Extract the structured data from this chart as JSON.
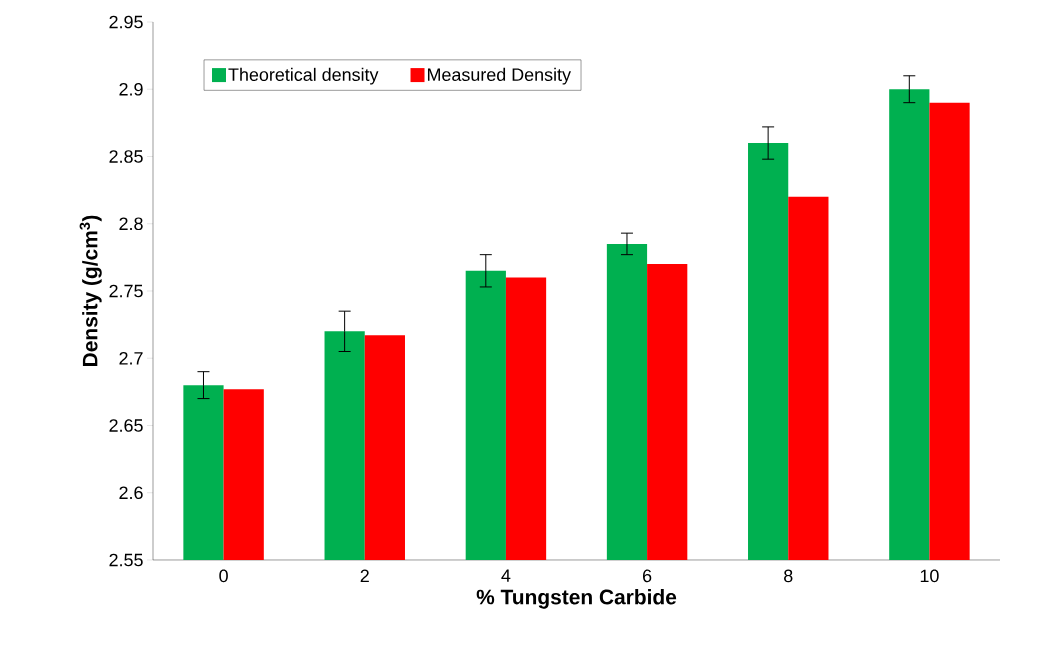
{
  "chart_data": {
    "type": "bar",
    "categories": [
      "0",
      "2",
      "4",
      "6",
      "8",
      "10"
    ],
    "xlabel": "% Tungsten Carbide",
    "ylabel": "Density (g/cm$^{3}$)",
    "ylim": [
      2.55,
      2.95
    ],
    "yticks": [
      2.55,
      2.6,
      2.65,
      2.7,
      2.75,
      2.8,
      2.85,
      2.9,
      2.95
    ],
    "legend": "top left",
    "series": [
      {
        "name": "Theoretical density",
        "color": "#00b050",
        "values": [
          2.68,
          2.72,
          2.765,
          2.785,
          2.86,
          2.9
        ],
        "errors": [
          0.01,
          0.015,
          0.012,
          0.008,
          0.012,
          0.01
        ]
      },
      {
        "name": "Measured Density",
        "color": "#ff0000",
        "values": [
          2.677,
          2.717,
          2.76,
          2.77,
          2.82,
          2.89
        ]
      }
    ]
  }
}
